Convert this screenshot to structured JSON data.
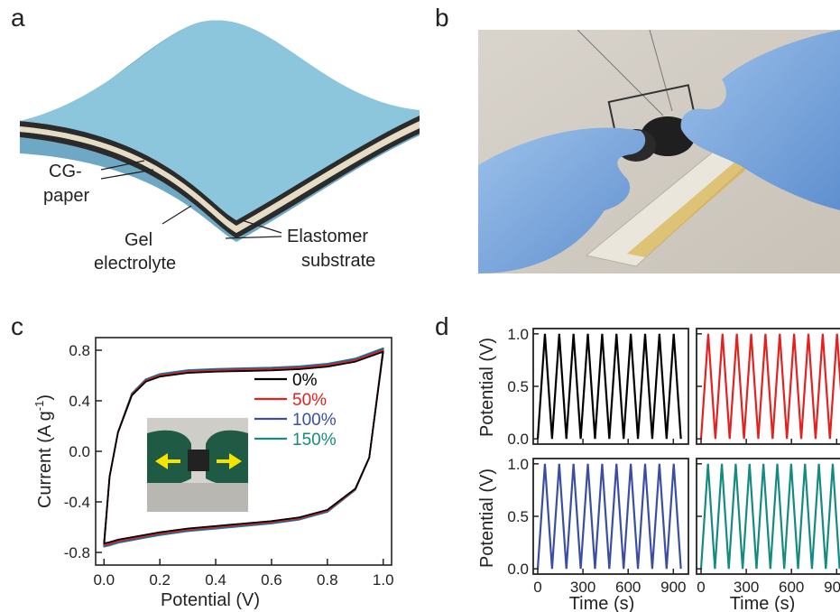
{
  "panels": {
    "a": {
      "label": "a",
      "annotations": {
        "cg_paper_line1": "CG-",
        "cg_paper_line2": "paper",
        "gel_line1": "Gel",
        "gel_line2": "electrolyte",
        "elastomer_line1": "Elastomer",
        "elastomer_line2": "substrate"
      },
      "colors": {
        "top": "#8cc6dc",
        "edge": "#6fa8c4",
        "layer_light": "#e6dcc4",
        "layer_dark": "#2b2b2b"
      }
    },
    "b": {
      "label": "b"
    },
    "c": {
      "label": "c"
    },
    "d": {
      "label": "d"
    }
  },
  "chart_data": [
    {
      "panel": "c",
      "type": "line",
      "title": "",
      "xlabel": "Potential (V)",
      "ylabel_main": "Current (A g",
      "ylabel_sup": "-1",
      "ylabel_close": ")",
      "xlim": [
        -0.03,
        1.03
      ],
      "ylim": [
        -0.9,
        0.9
      ],
      "xticks": [
        "0.0",
        "0.2",
        "0.4",
        "0.6",
        "0.8",
        "1.0"
      ],
      "yticks": [
        "0.8",
        "0.4",
        "0.0",
        "-0.4",
        "-0.8"
      ],
      "legend_position": "top-right",
      "x": [
        0.0,
        0.02,
        0.05,
        0.1,
        0.15,
        0.2,
        0.3,
        0.4,
        0.5,
        0.6,
        0.7,
        0.8,
        0.9,
        0.95,
        1.0
      ],
      "upper_values": [
        -0.74,
        -0.2,
        0.15,
        0.45,
        0.56,
        0.6,
        0.63,
        0.64,
        0.645,
        0.65,
        0.66,
        0.68,
        0.72,
        0.76,
        0.8
      ],
      "lower_values": [
        -0.74,
        -0.73,
        -0.71,
        -0.69,
        -0.67,
        -0.65,
        -0.62,
        -0.6,
        -0.58,
        -0.56,
        -0.53,
        -0.47,
        -0.3,
        -0.05,
        0.8
      ],
      "series": [
        {
          "name": "0%",
          "color": "#000000"
        },
        {
          "name": "50%",
          "color": "#e3211e"
        },
        {
          "name": "100%",
          "color": "#3b4ea6"
        },
        {
          "name": "150%",
          "color": "#148b80"
        }
      ],
      "inset": {
        "type": "photo",
        "arrow_color": "#f5e400"
      }
    },
    {
      "panel": "d",
      "type": "line",
      "title": "",
      "xlabel": "Time (s)",
      "ylabel": "Potential (V)",
      "xlim": [
        -30,
        1000
      ],
      "ylim": [
        -0.05,
        1.05
      ],
      "xticks": [
        "0",
        "300",
        "600",
        "900"
      ],
      "yticks": [
        "1.0",
        "0.5",
        "0.0"
      ],
      "subplots": [
        {
          "color": "#000000",
          "cycles": 10,
          "period": 95
        },
        {
          "color": "#e3211e",
          "cycles": 10,
          "period": 95
        },
        {
          "color": "#3b4ea6",
          "cycles": 10,
          "period": 95
        },
        {
          "color": "#148b80",
          "cycles": 10,
          "period": 92
        }
      ]
    }
  ]
}
